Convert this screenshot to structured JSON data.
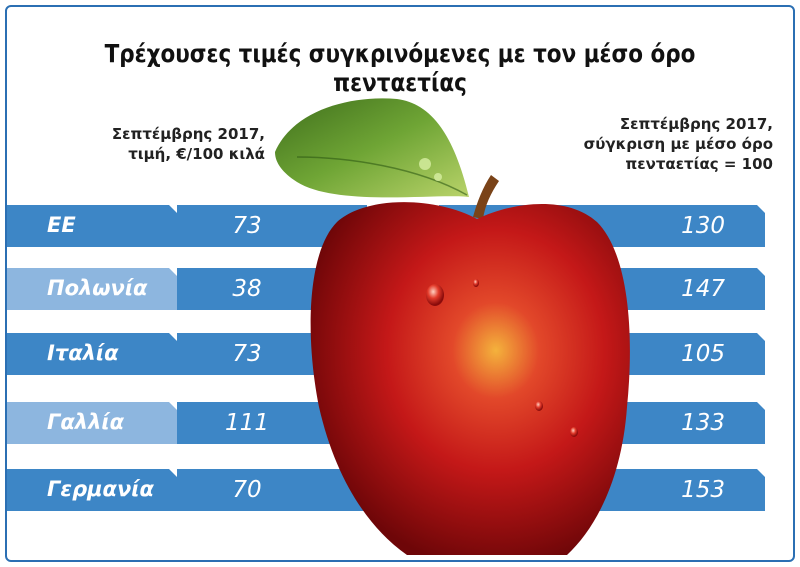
{
  "title": "Τρέχουσες τιμές συγκρινόμενες με τον μέσο όρο πενταετίας",
  "left_header": [
    "Σεπτέμβρης 2017,",
    "τιμή, €/100 κιλά"
  ],
  "right_header": [
    "Σεπτέμβρης 2017,",
    "σύγκριση με μέσο όρο",
    "πενταετίας = 100"
  ],
  "colors": {
    "bar": "#3d86c6",
    "bar_alt": "#8db6df",
    "label_dark": "#3d86c6",
    "frame": "#2b6fb3",
    "apple": "#c81e1e",
    "leaf": "#5d8f2a"
  },
  "chart_data": {
    "type": "table",
    "categories": [
      "ΕΕ",
      "Πολωνία",
      "Ιταλία",
      "Γαλλία",
      "Γερμανία"
    ],
    "series": [
      {
        "name": "Σεπτέμβρης 2017, τιμή, €/100 κιλά",
        "values": [
          73,
          38,
          73,
          111,
          70
        ]
      },
      {
        "name": "Σεπτέμβρης 2017, σύγκριση με μέσο όρο πενταετίας = 100",
        "values": [
          130,
          147,
          105,
          133,
          153
        ]
      }
    ]
  }
}
